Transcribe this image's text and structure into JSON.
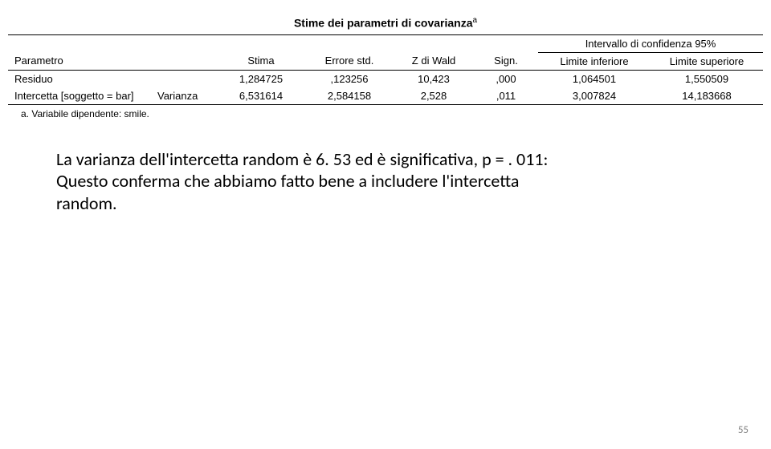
{
  "table": {
    "title": "Stime dei parametri di covarianza",
    "title_sup": "a",
    "ci_header": "Intervallo di confidenza 95%",
    "headers": {
      "param": "Parametro",
      "stima": "Stima",
      "errore": "Errore std.",
      "z": "Z di Wald",
      "sign": "Sign.",
      "ci_low": "Limite inferiore",
      "ci_high": "Limite superiore"
    },
    "rows": [
      {
        "label": "Residuo",
        "sublabel": "",
        "stima": "1,284725",
        "errore": ",123256",
        "z": "10,423",
        "sign": ",000",
        "ci_low": "1,064501",
        "ci_high": "1,550509"
      },
      {
        "label": "Intercetta [soggetto = bar]",
        "sublabel": "Varianza",
        "stima": "6,531614",
        "errore": "2,584158",
        "z": "2,528",
        "sign": ",011",
        "ci_low": "3,007824",
        "ci_high": "14,183668"
      }
    ],
    "footnote": "a. Variabile dipendente: smile."
  },
  "commentary": {
    "line1": "La varianza dell'intercetta random è 6. 53 ed è significativa, p = . 011:",
    "line2": "Questo conferma che abbiamo fatto bene a includere l'intercetta",
    "line3": "random."
  },
  "page_number": "55"
}
